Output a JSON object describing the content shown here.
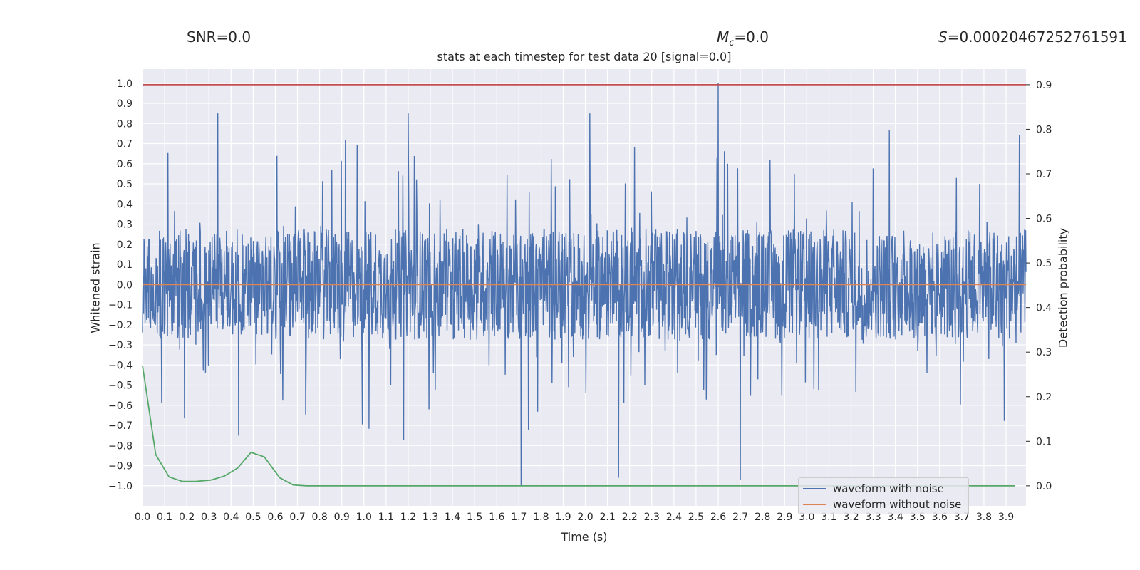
{
  "header": {
    "snr": "SNR=0.0",
    "mc_symbol": "M",
    "mc_sub": "c",
    "mc_value": "=0.0",
    "s_symbol": "S",
    "s_value": "=0.00020467252761591"
  },
  "chart_data": {
    "type": "line",
    "title": "stats at each timestep for test data 20 [signal=0.0]",
    "xlabel": "Time (s)",
    "ylabel_left": "Whitened strain",
    "ylabel_right": "Detection probability",
    "xlim": [
      0.0,
      3.99
    ],
    "ylim_left": [
      -1.1,
      1.07
    ],
    "ylim_right": [
      -0.045,
      0.935
    ],
    "x_ticks": [
      "0.0",
      "0.1",
      "0.2",
      "0.3",
      "0.4",
      "0.5",
      "0.6",
      "0.7",
      "0.8",
      "0.9",
      "1.0",
      "1.1",
      "1.2",
      "1.3",
      "1.4",
      "1.5",
      "1.6",
      "1.7",
      "1.8",
      "1.9",
      "2.0",
      "2.1",
      "2.2",
      "2.3",
      "2.4",
      "2.5",
      "2.6",
      "2.7",
      "2.8",
      "2.9",
      "3.0",
      "3.1",
      "3.2",
      "3.3",
      "3.4",
      "3.5",
      "3.6",
      "3.7",
      "3.8",
      "3.9"
    ],
    "y_ticks_left": [
      "1.0",
      "0.9",
      "0.8",
      "0.7",
      "0.6",
      "0.5",
      "0.4",
      "0.3",
      "0.2",
      "0.1",
      "0.0",
      "−0.1",
      "−0.2",
      "−0.3",
      "−0.4",
      "−0.5",
      "−0.6",
      "−0.7",
      "−0.8",
      "−0.9",
      "−1.0"
    ],
    "y_ticks_right": [
      "0.9",
      "0.8",
      "0.7",
      "0.6",
      "0.5",
      "0.4",
      "0.3",
      "0.2",
      "0.1",
      "0.0"
    ],
    "grid": true,
    "legend_position": "lower right",
    "series": [
      {
        "name": "waveform with noise",
        "axis": "left",
        "color": "#4c72b0",
        "note_peaks": [
          [
            0.34,
            0.85
          ],
          [
            1.2,
            0.85
          ],
          [
            2.02,
            0.85
          ],
          [
            2.6,
            1.0
          ],
          [
            1.71,
            -1.0
          ],
          [
            2.7,
            -0.97
          ],
          [
            2.15,
            -0.96
          ]
        ]
      },
      {
        "name": "waveform without noise",
        "axis": "left",
        "color": "#dd8452",
        "x": [
          0.0,
          3.99
        ],
        "y": [
          0.0,
          0.0
        ]
      },
      {
        "axis": "right",
        "color": "#55a868",
        "x": [
          0.0,
          0.06,
          0.12,
          0.18,
          0.24,
          0.31,
          0.37,
          0.43,
          0.49,
          0.55,
          0.62,
          0.68,
          0.74,
          0.8,
          3.94
        ],
        "y": [
          0.27,
          0.07,
          0.02,
          0.01,
          0.01,
          0.013,
          0.022,
          0.04,
          0.075,
          0.065,
          0.018,
          0.002,
          0.0,
          0.0,
          0.0
        ]
      },
      {
        "axis": "right",
        "color": "#c44e52",
        "x": [
          0.0,
          3.99
        ],
        "y": [
          0.9,
          0.9
        ]
      }
    ]
  },
  "legend": {
    "items": [
      {
        "label": "waveform with noise",
        "color": "#4c72b0"
      },
      {
        "label": "waveform without noise",
        "color": "#dd8452"
      }
    ]
  }
}
